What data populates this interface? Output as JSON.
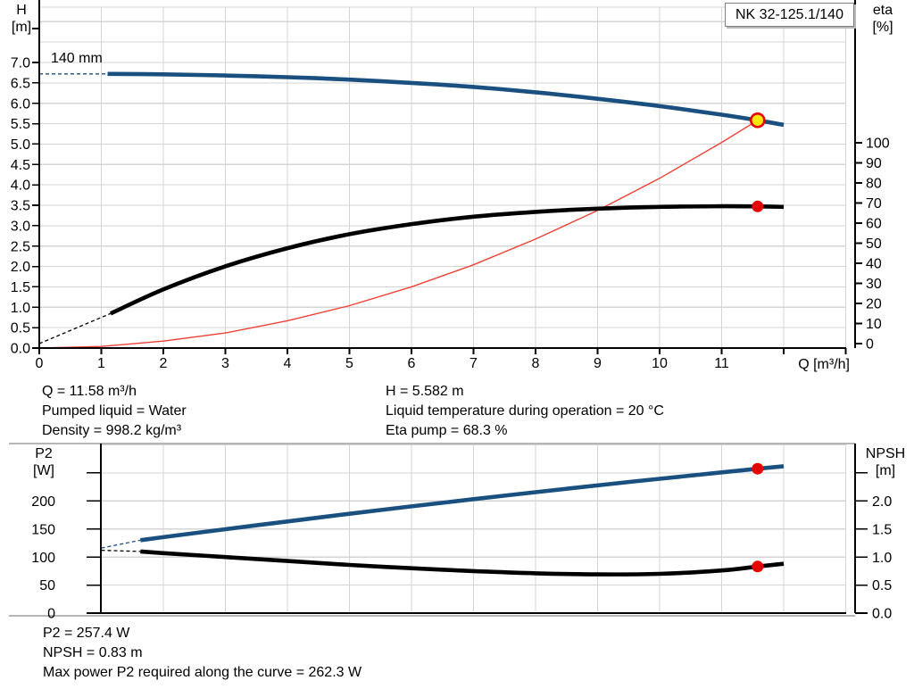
{
  "title_box": "NK 32-125.1/140",
  "labels": {
    "h": "H",
    "h_unit": "[m]",
    "eta": "eta",
    "eta_unit": "[%]",
    "q": "Q [m³/h]",
    "p2": "P2",
    "p2_unit": "[W]",
    "npsh": "NPSH",
    "npsh_unit": "[m]",
    "impeller": "140 mm"
  },
  "info_top": {
    "left": [
      "Q = 11.58 m³/h",
      "Pumped liquid = Water",
      "Density = 998.2 kg/m³"
    ],
    "right": [
      "H = 5.582 m",
      "Liquid temperature during operation = 20 °C",
      "Eta pump = 68.3 %"
    ]
  },
  "info_bottom": [
    "P2 = 257.4 W",
    "NPSH = 0.83 m",
    "Max power P2 required along the curve = 262.3 W"
  ],
  "colors": {
    "curve_blue": "#1a5080",
    "curve_black": "#000000",
    "system_red": "#ee4135",
    "dot_red": "#e60000",
    "duty_yellow": "#ffe60a",
    "grid": "#d4d4d4",
    "axis": "#000000",
    "frame_gray": "#b6b6b6"
  },
  "chart_data": [
    {
      "type": "line",
      "title": "NK 32-125.1/140",
      "annotation": "140 mm",
      "x_axis": {
        "label": "Q [m³/h]",
        "min": 0,
        "max": 13,
        "step": 1,
        "tick_labels": [
          "0",
          "1",
          "2",
          "3",
          "4",
          "5",
          "6",
          "7",
          "8",
          "9",
          "10",
          "11"
        ],
        "unlabeled_ticks": [
          12,
          13
        ]
      },
      "y_left": {
        "label": "H [m]",
        "min": 0,
        "max": 7,
        "step": 0.5,
        "tick_labels": [
          "0.0",
          "0.5",
          "1.0",
          "1.5",
          "2.0",
          "2.5",
          "3.0",
          "3.5",
          "4.0",
          "4.5",
          "5.0",
          "5.5",
          "6.0",
          "6.5",
          "7.0"
        ],
        "unlabeled_ticks": []
      },
      "y_right": {
        "label": "eta [%]",
        "min": 0,
        "max": 100,
        "step": 10,
        "tick_labels": [
          "0",
          "10",
          "20",
          "30",
          "40",
          "50",
          "60",
          "70",
          "80",
          "90",
          "100"
        ],
        "unlabeled_ticks": []
      },
      "series": [
        {
          "name": "system-curve",
          "axis": "left",
          "style": "thin",
          "color": "system_red",
          "points": [
            [
              0,
              0
            ],
            [
              1,
              0.04
            ],
            [
              2,
              0.17
            ],
            [
              3,
              0.37
            ],
            [
              4,
              0.67
            ],
            [
              5,
              1.04
            ],
            [
              6,
              1.5
            ],
            [
              7,
              2.04
            ],
            [
              8,
              2.67
            ],
            [
              9,
              3.37
            ],
            [
              10,
              4.16
            ],
            [
              11,
              5.04
            ],
            [
              11.58,
              5.582
            ]
          ]
        },
        {
          "name": "head-curve-dashed",
          "axis": "left",
          "style": "dashed",
          "color": "curve_blue",
          "points": [
            [
              0,
              6.72
            ],
            [
              1.1,
              6.72
            ]
          ]
        },
        {
          "name": "eta-curve-dashed",
          "axis": "right",
          "style": "dashed",
          "color": "curve_black",
          "points": [
            [
              0,
              0
            ],
            [
              1.15,
              15
            ]
          ]
        },
        {
          "name": "head-curve",
          "axis": "left",
          "style": "solid",
          "color": "curve_blue",
          "points": [
            [
              1.1,
              6.72
            ],
            [
              2,
              6.71
            ],
            [
              3,
              6.68
            ],
            [
              4,
              6.64
            ],
            [
              5,
              6.58
            ],
            [
              6,
              6.5
            ],
            [
              7,
              6.4
            ],
            [
              8,
              6.27
            ],
            [
              9,
              6.11
            ],
            [
              10,
              5.93
            ],
            [
              11,
              5.72
            ],
            [
              11.58,
              5.582
            ],
            [
              12,
              5.47
            ]
          ]
        },
        {
          "name": "eta-curve",
          "axis": "right",
          "style": "solid",
          "color": "curve_black",
          "points": [
            [
              1.15,
              15
            ],
            [
              2,
              27
            ],
            [
              3,
              38.5
            ],
            [
              4,
              47.5
            ],
            [
              5,
              54.5
            ],
            [
              6,
              59.5
            ],
            [
              7,
              63.2
            ],
            [
              8,
              65.6
            ],
            [
              9,
              67.2
            ],
            [
              10,
              68.1
            ],
            [
              11,
              68.4
            ],
            [
              11.58,
              68.3
            ],
            [
              12,
              68.1
            ]
          ]
        }
      ],
      "markers": [
        {
          "name": "duty-point",
          "axis": "left",
          "x": 11.58,
          "y": 5.582,
          "style": "duty"
        },
        {
          "name": "eta-point",
          "axis": "right",
          "x": 11.58,
          "y": 68.3,
          "style": "dot"
        }
      ]
    },
    {
      "type": "line",
      "title": "",
      "x_axis": {
        "label": "",
        "min": 0,
        "max": 13,
        "step": 1,
        "tick_labels": [],
        "unlabeled_ticks": []
      },
      "y_left": {
        "label": "P2 [W]",
        "min": 0,
        "max": 250,
        "step": 50,
        "tick_labels": [
          "0",
          "50",
          "100",
          "150",
          "200"
        ],
        "unlabeled_ticks": [
          250
        ]
      },
      "y_right": {
        "label": "NPSH [m]",
        "min": 0,
        "max": 2.5,
        "step": 0.5,
        "tick_labels": [
          "0.0",
          "0.5",
          "1.0",
          "1.5",
          "2.0"
        ],
        "unlabeled_ticks": [
          2.5
        ]
      },
      "series": [
        {
          "name": "p2-curve-dashed",
          "axis": "left",
          "style": "dashed",
          "color": "curve_blue",
          "points": [
            [
              1.0,
              116
            ],
            [
              1.63,
              130
            ]
          ]
        },
        {
          "name": "npsh-curve-dashed",
          "axis": "right",
          "style": "dashed",
          "color": "curve_black",
          "points": [
            [
              1.0,
              1.12
            ],
            [
              1.63,
              1.1
            ]
          ]
        },
        {
          "name": "p2-curve",
          "axis": "left",
          "style": "solid",
          "color": "curve_blue",
          "points": [
            [
              1.63,
              130
            ],
            [
              2,
              135.4
            ],
            [
              3,
              149.6
            ],
            [
              4,
              163.5
            ],
            [
              5,
              177.1
            ],
            [
              6,
              190.3
            ],
            [
              7,
              203.2
            ],
            [
              8,
              215.6
            ],
            [
              9,
              227.8
            ],
            [
              10,
              239.5
            ],
            [
              11,
              250.9
            ],
            [
              11.58,
              257.4
            ],
            [
              12,
              262
            ]
          ]
        },
        {
          "name": "npsh-curve",
          "axis": "right",
          "style": "solid",
          "color": "curve_black",
          "points": [
            [
              1.63,
              1.1
            ],
            [
              2,
              1.07
            ],
            [
              3,
              1.0
            ],
            [
              4,
              0.93
            ],
            [
              5,
              0.86
            ],
            [
              6,
              0.8
            ],
            [
              7,
              0.75
            ],
            [
              8,
              0.71
            ],
            [
              9,
              0.69
            ],
            [
              10,
              0.7
            ],
            [
              11,
              0.76
            ],
            [
              11.58,
              0.83
            ],
            [
              12,
              0.88
            ]
          ]
        }
      ],
      "markers": [
        {
          "name": "p2-point",
          "axis": "left",
          "x": 11.58,
          "y": 257.4,
          "style": "dot"
        },
        {
          "name": "npsh-point",
          "axis": "right",
          "x": 11.58,
          "y": 0.83,
          "style": "dot"
        }
      ]
    }
  ]
}
